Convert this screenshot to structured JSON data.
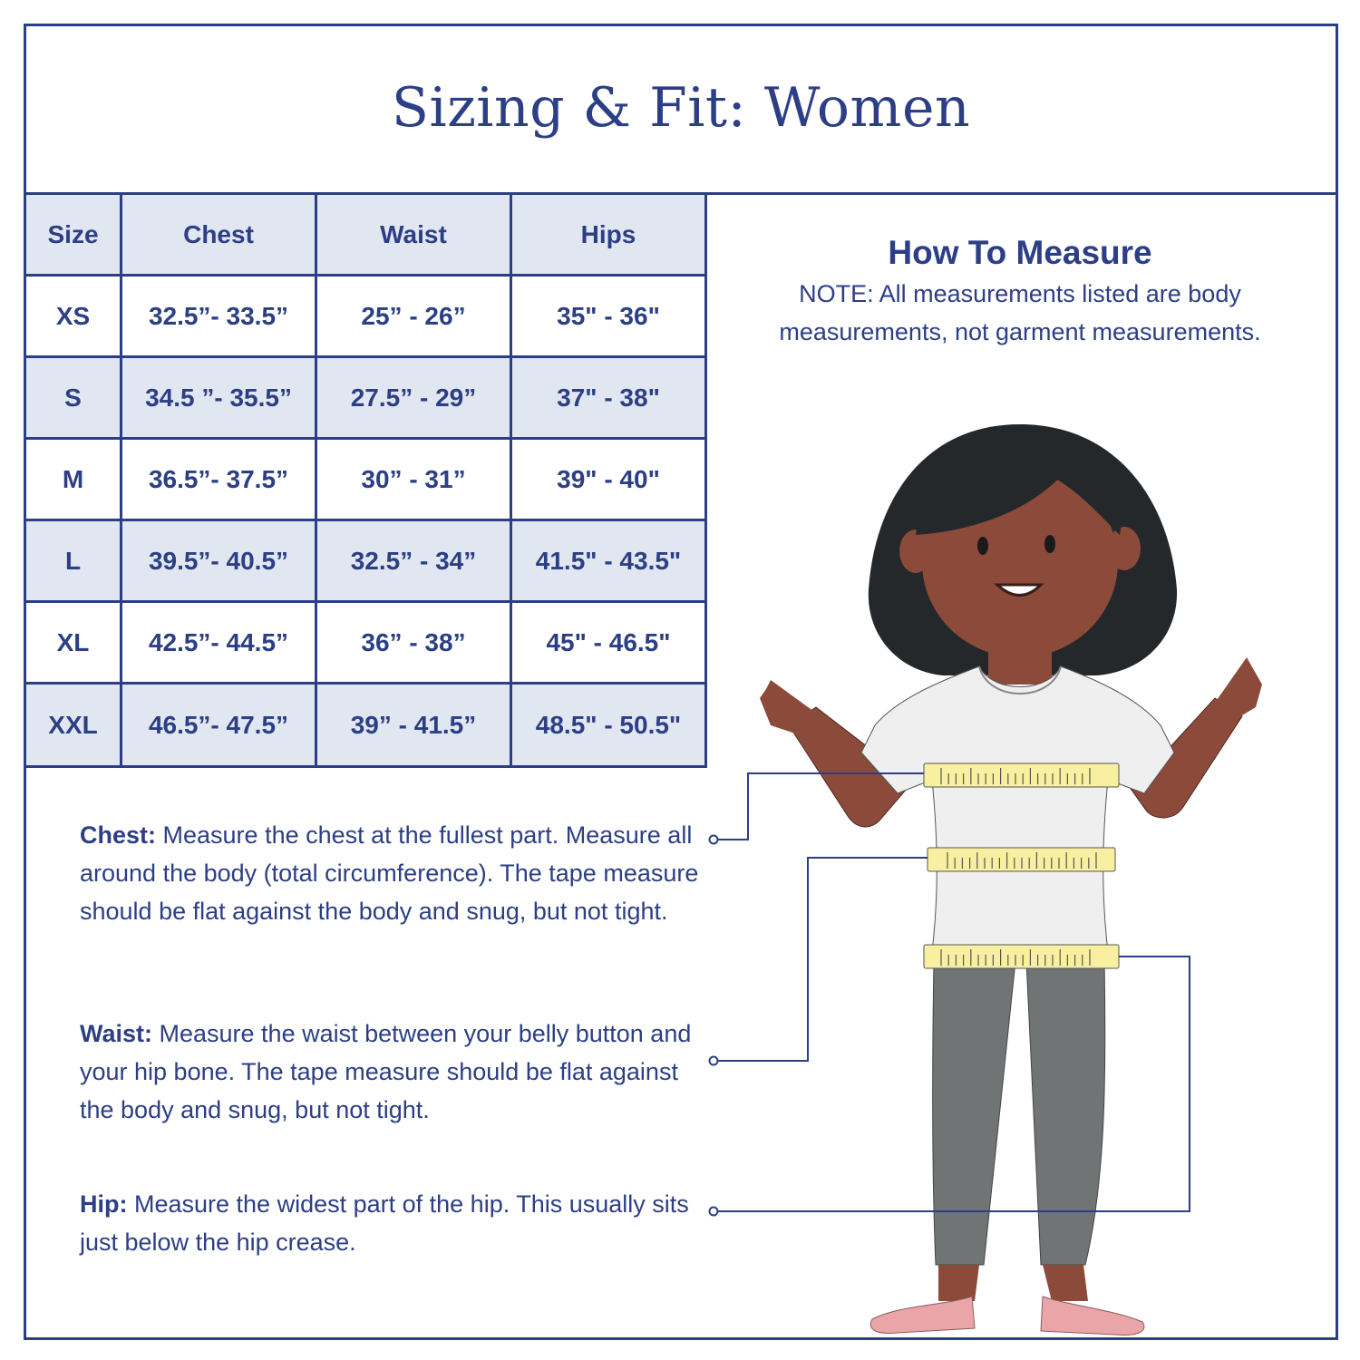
{
  "title": "Sizing & Fit: Women",
  "table": {
    "headers": [
      "Size",
      "Chest",
      "Waist",
      "Hips"
    ],
    "rows": [
      [
        "XS",
        "32.5”- 33.5”",
        "25” - 26”",
        "35\" - 36\""
      ],
      [
        "S",
        "34.5 ”- 35.5”",
        "27.5” - 29”",
        "37\" - 38\""
      ],
      [
        "M",
        "36.5”- 37.5”",
        "30” - 31”",
        "39\" - 40\""
      ],
      [
        "L",
        "39.5”- 40.5”",
        "32.5” - 34”",
        "41.5\" - 43.5\""
      ],
      [
        "XL",
        "42.5”- 44.5”",
        "36” - 38”",
        "45\" - 46.5\""
      ],
      [
        "XXL",
        "46.5”- 47.5”",
        "39” - 41.5”",
        "48.5\" - 50.5\""
      ]
    ]
  },
  "how_to_measure": {
    "heading": "How To Measure",
    "note": "NOTE: All measurements listed are body measurements, not garment measurements."
  },
  "instructions": {
    "chest": {
      "label": "Chest:",
      "text": " Measure the chest at the fullest part. Measure all around the body (total circumference). The tape measure should be flat against the body and snug, but not tight."
    },
    "waist": {
      "label": "Waist:",
      "text": " Measure the waist between your belly button and your hip bone. The tape measure should be flat against the body and snug, but not tight."
    },
    "hip": {
      "label": "Hip:",
      "text": " Measure the widest part of the hip. This usually sits just below the hip crease."
    }
  },
  "colors": {
    "brand_navy": "#2c3e85",
    "row_shade": "#e1e7f1",
    "tape_yellow": "#f8f0a0"
  }
}
